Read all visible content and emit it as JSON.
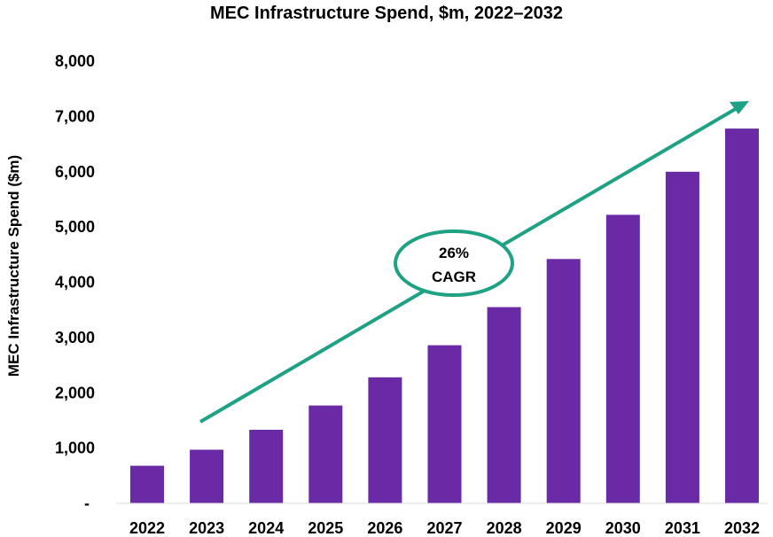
{
  "chart_data": {
    "type": "bar",
    "title": "MEC Infrastructure Spend, $m, 2022–2032",
    "ylabel": "MEC Infrastructure Spend ($m)",
    "xlabel": "",
    "categories": [
      "2022",
      "2023",
      "2024",
      "2025",
      "2026",
      "2027",
      "2028",
      "2029",
      "2030",
      "2031",
      "2032"
    ],
    "values": [
      680,
      970,
      1330,
      1770,
      2280,
      2860,
      3550,
      4420,
      5220,
      6000,
      6780
    ],
    "ylim": [
      0,
      8000
    ],
    "yticks": [
      0,
      1000,
      2000,
      3000,
      4000,
      5000,
      6000,
      7000,
      8000
    ],
    "ytick_labels": [
      "-",
      "1,000",
      "2,000",
      "3,000",
      "4,000",
      "5,000",
      "6,000",
      "7,000",
      "8,000"
    ],
    "grid": false,
    "bar_color": "#6A2AA6",
    "annotation": {
      "line1": "26%",
      "line2": "CAGR",
      "color": "#1FA283"
    }
  }
}
